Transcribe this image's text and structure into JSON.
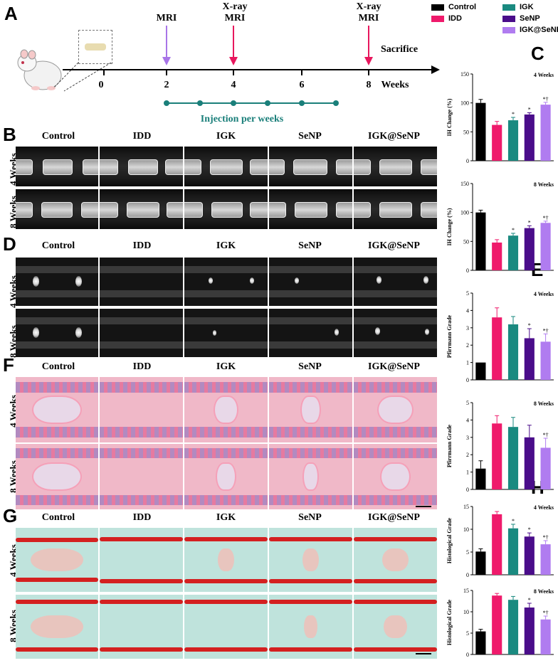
{
  "panel_labels": {
    "A": "A",
    "B": "B",
    "C": "C",
    "D": "D",
    "E": "E",
    "F": "F",
    "G": "G",
    "H": "H"
  },
  "timeline": {
    "ticks": [
      "0",
      "2",
      "4",
      "6",
      "8"
    ],
    "unit": "Weeks",
    "events": [
      {
        "label": "MRI",
        "color": "#a875e8"
      },
      {
        "label": "X-ray\nMRI",
        "color": "#e8175d"
      },
      {
        "label": "X-ray\nMRI",
        "color": "#e8175d"
      }
    ],
    "sacrifice": "Sacrifice",
    "injection": "Injection per weeks",
    "injection_color": "#1a7f7a"
  },
  "groups": [
    "Control",
    "IDD",
    "IGK",
    "SeNP",
    "IGK@SeNP"
  ],
  "rows": [
    "4 Weeks",
    "8 Weeks"
  ],
  "legend": [
    {
      "name": "Control",
      "color": "#000000"
    },
    {
      "name": "IGK",
      "color": "#1a8a80"
    },
    {
      "name": "IDD",
      "color": "#ef1a6b"
    },
    {
      "name": "SeNP",
      "color": "#4a0d8a"
    },
    {
      "name": "IGK@SeNP",
      "color": "#b07cf0"
    }
  ],
  "chart_data": [
    {
      "id": "C1",
      "type": "bar",
      "ylabel": "IH Change (%)",
      "label": "4 Weeks",
      "ylim": [
        0,
        150
      ],
      "yticks": [
        0,
        50,
        100,
        150
      ],
      "categories": [
        "Control",
        "IDD",
        "IGK",
        "SeNP",
        "IGK@SeNP"
      ],
      "values": [
        100,
        62,
        70,
        80,
        97
      ],
      "errors": [
        6,
        6,
        5,
        3,
        4
      ],
      "annotations": [
        "",
        "",
        "*",
        "*",
        "*†"
      ]
    },
    {
      "id": "C2",
      "type": "bar",
      "ylabel": "IH Change (%)",
      "label": "8 Weeks",
      "ylim": [
        0,
        150
      ],
      "yticks": [
        0,
        50,
        100,
        150
      ],
      "categories": [
        "Control",
        "IDD",
        "IGK",
        "SeNP",
        "IGK@SeNP"
      ],
      "values": [
        100,
        48,
        60,
        73,
        82
      ],
      "errors": [
        4,
        5,
        4,
        4,
        3
      ],
      "annotations": [
        "",
        "",
        "*",
        "*",
        "*†"
      ]
    },
    {
      "id": "E1",
      "type": "bar",
      "ylabel": "Pfirrmann Grade",
      "label": "4 Weeks",
      "ylim": [
        0,
        5
      ],
      "yticks": [
        0,
        1,
        2,
        3,
        4,
        5
      ],
      "categories": [
        "Control",
        "IDD",
        "IGK",
        "SeNP",
        "IGK@SeNP"
      ],
      "values": [
        1,
        3.6,
        3.2,
        2.4,
        2.2
      ],
      "errors": [
        0,
        0.55,
        0.45,
        0.55,
        0.45
      ],
      "annotations": [
        "",
        "",
        "",
        "*",
        "*†"
      ]
    },
    {
      "id": "E2",
      "type": "bar",
      "ylabel": "Pfirrmann Grade",
      "label": "8 Weeks",
      "ylim": [
        0,
        5
      ],
      "yticks": [
        0,
        1,
        2,
        3,
        4,
        5
      ],
      "categories": [
        "Control",
        "IDD",
        "IGK",
        "SeNP",
        "IGK@SeNP"
      ],
      "values": [
        1.2,
        3.8,
        3.6,
        3.0,
        2.4
      ],
      "errors": [
        0.45,
        0.45,
        0.55,
        0.7,
        0.55
      ],
      "annotations": [
        "",
        "",
        "",
        "",
        "*†"
      ]
    },
    {
      "id": "H1",
      "type": "bar",
      "ylabel": "Histological Grade",
      "label": "4 Weeks",
      "ylim": [
        0,
        15
      ],
      "yticks": [
        0,
        5,
        10,
        15
      ],
      "categories": [
        "Control",
        "IDD",
        "IGK",
        "SeNP",
        "IGK@SeNP"
      ],
      "values": [
        5.1,
        13.3,
        10.2,
        8.4,
        6.7
      ],
      "errors": [
        0.6,
        0.6,
        0.9,
        0.8,
        0.8
      ],
      "annotations": [
        "",
        "",
        "*",
        "*",
        "*†"
      ]
    },
    {
      "id": "H2",
      "type": "bar",
      "ylabel": "Histological Grade",
      "label": "8 Weeks",
      "ylim": [
        0,
        15
      ],
      "yticks": [
        0,
        5,
        10,
        15
      ],
      "categories": [
        "Control",
        "IDD",
        "IGK",
        "SeNP",
        "IGK@SeNP"
      ],
      "values": [
        5.4,
        13.8,
        12.8,
        11.0,
        8.2
      ],
      "errors": [
        0.5,
        0.5,
        0.8,
        1.0,
        0.8
      ],
      "annotations": [
        "",
        "",
        "",
        "*",
        "*†"
      ]
    }
  ]
}
